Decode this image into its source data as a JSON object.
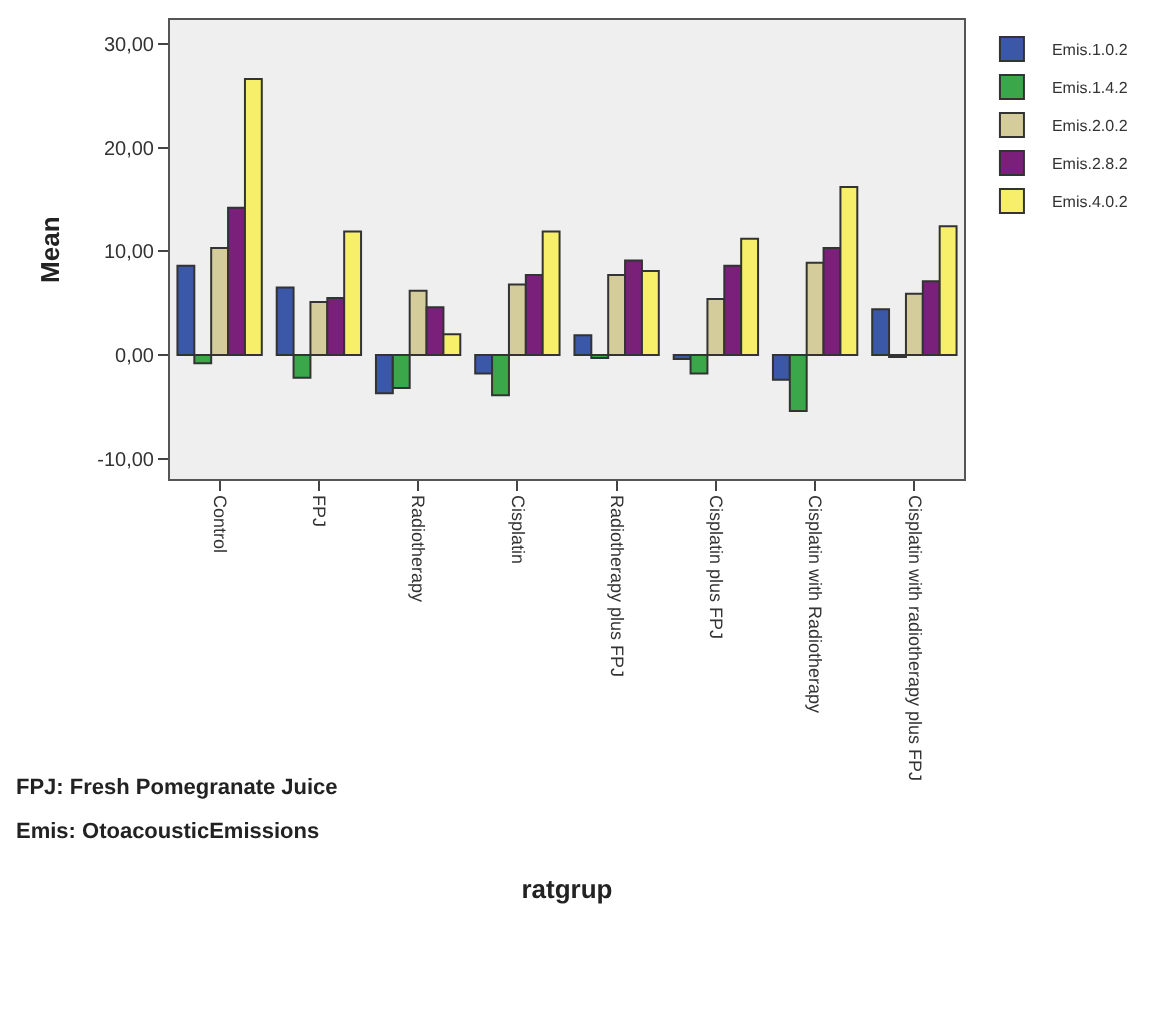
{
  "chart_data": {
    "type": "bar",
    "xlabel": "ratgrup",
    "ylabel": "Mean",
    "categories": [
      "Control",
      "FPJ",
      "Radiotherapy",
      "Cisplatin",
      "Radiotherapy plus FPJ",
      "Cisplatin plus FPJ",
      "Cisplatin with Radiotherapy",
      "Cisplatin with radiotherapy plus FPJ"
    ],
    "series": [
      {
        "name": "Emis.1.0.2",
        "color": "#3a57a8",
        "values": [
          8.6,
          6.5,
          -3.7,
          -1.8,
          1.9,
          -0.4,
          -2.4,
          4.4
        ]
      },
      {
        "name": "Emis.1.4.2",
        "color": "#3aa84a",
        "values": [
          -0.8,
          -2.2,
          -3.2,
          -3.9,
          -0.3,
          -1.8,
          -5.4,
          -0.2
        ]
      },
      {
        "name": "Emis.2.0.2",
        "color": "#d4cc9a",
        "values": [
          10.3,
          5.1,
          6.2,
          6.8,
          7.7,
          5.4,
          8.9,
          5.9
        ]
      },
      {
        "name": "Emis.2.8.2",
        "color": "#7a1f7a",
        "values": [
          14.2,
          5.5,
          4.6,
          7.7,
          9.1,
          8.6,
          10.3,
          7.1
        ]
      },
      {
        "name": "Emis.4.0.2",
        "color": "#f7ef6a",
        "values": [
          26.6,
          11.9,
          2.0,
          11.9,
          8.1,
          11.2,
          16.2,
          12.4
        ]
      }
    ],
    "ylim": [
      -12,
      32.3
    ],
    "yticks": [
      {
        "value": -10,
        "label": "-10,00"
      },
      {
        "value": 0,
        "label": "0,00"
      },
      {
        "value": 10,
        "label": "10,00"
      },
      {
        "value": 20,
        "label": "20,00"
      },
      {
        "value": 30,
        "label": "30,00"
      }
    ],
    "legend": "top right",
    "grid": false,
    "annotations": [
      "FPJ: Fresh Pomegranate Juice",
      "Emis: OtoacousticEmissions"
    ]
  }
}
